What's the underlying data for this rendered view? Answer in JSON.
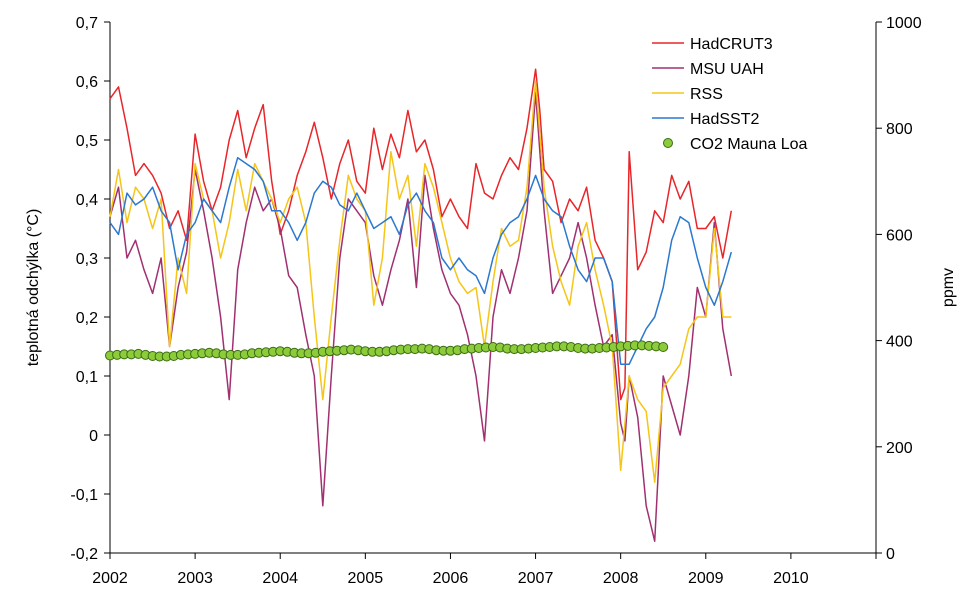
{
  "chart_data": {
    "type": "line",
    "title": "",
    "ylabel": "teplotná odchýlka (°C)",
    "y2label": "ppmv",
    "xlim": [
      2002,
      2011
    ],
    "ylim": [
      -0.2,
      0.7
    ],
    "y2lim": [
      0,
      1000
    ],
    "x_ticks": [
      2002,
      2003,
      2004,
      2005,
      2006,
      2007,
      2008,
      2009,
      2010
    ],
    "x_tick_labels": [
      "2002",
      "2003",
      "2004",
      "2005",
      "2006",
      "2007",
      "2008",
      "2009",
      "2010"
    ],
    "y_ticks": [
      -0.2,
      -0.1,
      0,
      0.1,
      0.2,
      0.3,
      0.4,
      0.5,
      0.6,
      0.7
    ],
    "y_tick_labels": [
      "-0,2",
      "-0,1",
      "0",
      "0,1",
      "0,2",
      "0,3",
      "0,4",
      "0,5",
      "0,6",
      "0,7"
    ],
    "y2_ticks": [
      0,
      200,
      400,
      600,
      800,
      1000
    ],
    "y2_tick_labels": [
      "0",
      "200",
      "400",
      "600",
      "800",
      "1000"
    ],
    "legend_position": "top-right",
    "series": [
      {
        "name": "HadCRUT3",
        "axis": "left",
        "color": "#e8262a",
        "x": [
          2002.0,
          2002.1,
          2002.2,
          2002.3,
          2002.4,
          2002.5,
          2002.6,
          2002.7,
          2002.8,
          2002.9,
          2003.0,
          2003.1,
          2003.2,
          2003.3,
          2003.4,
          2003.5,
          2003.6,
          2003.7,
          2003.8,
          2003.9,
          2004.0,
          2004.1,
          2004.2,
          2004.3,
          2004.4,
          2004.5,
          2004.6,
          2004.7,
          2004.8,
          2004.9,
          2005.0,
          2005.1,
          2005.2,
          2005.3,
          2005.4,
          2005.5,
          2005.6,
          2005.7,
          2005.8,
          2005.9,
          2006.0,
          2006.1,
          2006.2,
          2006.3,
          2006.4,
          2006.5,
          2006.6,
          2006.7,
          2006.8,
          2006.9,
          2007.0,
          2007.05,
          2007.1,
          2007.2,
          2007.3,
          2007.4,
          2007.5,
          2007.6,
          2007.7,
          2007.8,
          2007.9,
          2008.0,
          2008.05,
          2008.1,
          2008.2,
          2008.3,
          2008.4,
          2008.5,
          2008.6,
          2008.7,
          2008.8,
          2008.9,
          2009.0,
          2009.1,
          2009.2,
          2009.3
        ],
        "values": [
          0.57,
          0.59,
          0.52,
          0.44,
          0.46,
          0.44,
          0.41,
          0.35,
          0.38,
          0.33,
          0.51,
          0.43,
          0.38,
          0.42,
          0.5,
          0.55,
          0.47,
          0.52,
          0.56,
          0.43,
          0.34,
          0.38,
          0.44,
          0.48,
          0.53,
          0.47,
          0.4,
          0.46,
          0.5,
          0.43,
          0.41,
          0.52,
          0.45,
          0.51,
          0.47,
          0.55,
          0.48,
          0.5,
          0.45,
          0.37,
          0.4,
          0.37,
          0.35,
          0.46,
          0.41,
          0.4,
          0.44,
          0.47,
          0.45,
          0.52,
          0.62,
          0.55,
          0.45,
          0.43,
          0.36,
          0.4,
          0.38,
          0.42,
          0.33,
          0.3,
          0.26,
          0.06,
          0.08,
          0.48,
          0.28,
          0.31,
          0.38,
          0.36,
          0.44,
          0.4,
          0.43,
          0.35,
          0.35,
          0.37,
          0.3,
          0.38
        ]
      },
      {
        "name": "MSU UAH",
        "axis": "left",
        "color": "#a03070",
        "x": [
          2002.0,
          2002.1,
          2002.2,
          2002.3,
          2002.4,
          2002.5,
          2002.6,
          2002.7,
          2002.8,
          2002.9,
          2003.0,
          2003.1,
          2003.2,
          2003.3,
          2003.4,
          2003.5,
          2003.6,
          2003.7,
          2003.8,
          2003.9,
          2004.0,
          2004.1,
          2004.2,
          2004.3,
          2004.4,
          2004.5,
          2004.6,
          2004.7,
          2004.8,
          2004.9,
          2005.0,
          2005.1,
          2005.2,
          2005.3,
          2005.4,
          2005.5,
          2005.6,
          2005.7,
          2005.8,
          2005.9,
          2006.0,
          2006.1,
          2006.2,
          2006.3,
          2006.4,
          2006.5,
          2006.6,
          2006.7,
          2006.8,
          2006.9,
          2007.0,
          2007.1,
          2007.2,
          2007.3,
          2007.4,
          2007.5,
          2007.6,
          2007.7,
          2007.8,
          2007.9,
          2008.0,
          2008.05,
          2008.1,
          2008.2,
          2008.3,
          2008.4,
          2008.5,
          2008.6,
          2008.7,
          2008.8,
          2008.9,
          2009.0,
          2009.1,
          2009.2,
          2009.3
        ],
        "values": [
          0.37,
          0.42,
          0.3,
          0.33,
          0.28,
          0.24,
          0.3,
          0.15,
          0.25,
          0.31,
          0.45,
          0.38,
          0.3,
          0.2,
          0.06,
          0.28,
          0.36,
          0.42,
          0.38,
          0.4,
          0.35,
          0.27,
          0.25,
          0.17,
          0.1,
          -0.12,
          0.1,
          0.3,
          0.4,
          0.38,
          0.36,
          0.27,
          0.22,
          0.28,
          0.33,
          0.4,
          0.25,
          0.44,
          0.35,
          0.28,
          0.24,
          0.22,
          0.17,
          0.1,
          -0.01,
          0.2,
          0.28,
          0.24,
          0.3,
          0.38,
          0.58,
          0.38,
          0.24,
          0.27,
          0.3,
          0.36,
          0.3,
          0.22,
          0.15,
          0.17,
          0.02,
          -0.01,
          0.1,
          0.03,
          -0.12,
          -0.18,
          0.1,
          0.05,
          0.0,
          0.1,
          0.25,
          0.2,
          0.36,
          0.18,
          0.1
        ]
      },
      {
        "name": "RSS",
        "axis": "left",
        "color": "#f5c518",
        "x": [
          2002.0,
          2002.1,
          2002.2,
          2002.3,
          2002.4,
          2002.5,
          2002.6,
          2002.7,
          2002.8,
          2002.9,
          2003.0,
          2003.1,
          2003.2,
          2003.3,
          2003.4,
          2003.5,
          2003.6,
          2003.7,
          2003.8,
          2003.9,
          2004.0,
          2004.1,
          2004.2,
          2004.3,
          2004.4,
          2004.5,
          2004.6,
          2004.7,
          2004.8,
          2004.9,
          2005.0,
          2005.1,
          2005.2,
          2005.3,
          2005.4,
          2005.5,
          2005.6,
          2005.7,
          2005.8,
          2005.9,
          2006.0,
          2006.1,
          2006.2,
          2006.3,
          2006.4,
          2006.5,
          2006.6,
          2006.7,
          2006.8,
          2006.9,
          2007.0,
          2007.1,
          2007.2,
          2007.3,
          2007.4,
          2007.5,
          2007.6,
          2007.7,
          2007.8,
          2007.9,
          2008.0,
          2008.1,
          2008.2,
          2008.3,
          2008.4,
          2008.5,
          2008.6,
          2008.7,
          2008.8,
          2008.9,
          2009.0,
          2009.1,
          2009.2,
          2009.3
        ],
        "values": [
          0.37,
          0.45,
          0.36,
          0.42,
          0.4,
          0.35,
          0.4,
          0.15,
          0.3,
          0.24,
          0.46,
          0.4,
          0.38,
          0.3,
          0.36,
          0.45,
          0.38,
          0.46,
          0.43,
          0.4,
          0.36,
          0.4,
          0.42,
          0.36,
          0.2,
          0.06,
          0.2,
          0.33,
          0.44,
          0.4,
          0.38,
          0.22,
          0.3,
          0.48,
          0.4,
          0.44,
          0.32,
          0.46,
          0.42,
          0.36,
          0.3,
          0.26,
          0.24,
          0.25,
          0.15,
          0.26,
          0.35,
          0.32,
          0.33,
          0.42,
          0.6,
          0.42,
          0.32,
          0.26,
          0.22,
          0.32,
          0.36,
          0.28,
          0.22,
          0.15,
          -0.06,
          0.1,
          0.06,
          0.04,
          -0.08,
          0.08,
          0.1,
          0.12,
          0.18,
          0.2,
          0.2,
          0.35,
          0.2,
          0.2
        ]
      },
      {
        "name": "HadSST2",
        "axis": "left",
        "color": "#2a78d0",
        "x": [
          2002.0,
          2002.1,
          2002.2,
          2002.3,
          2002.4,
          2002.5,
          2002.6,
          2002.7,
          2002.8,
          2002.9,
          2003.0,
          2003.1,
          2003.2,
          2003.3,
          2003.4,
          2003.5,
          2003.6,
          2003.7,
          2003.8,
          2003.9,
          2004.0,
          2004.1,
          2004.2,
          2004.3,
          2004.4,
          2004.5,
          2004.6,
          2004.7,
          2004.8,
          2004.9,
          2005.0,
          2005.1,
          2005.2,
          2005.3,
          2005.4,
          2005.5,
          2005.6,
          2005.7,
          2005.8,
          2005.9,
          2006.0,
          2006.1,
          2006.2,
          2006.3,
          2006.4,
          2006.5,
          2006.6,
          2006.7,
          2006.8,
          2006.9,
          2007.0,
          2007.1,
          2007.2,
          2007.3,
          2007.4,
          2007.5,
          2007.6,
          2007.7,
          2007.8,
          2007.9,
          2008.0,
          2008.1,
          2008.2,
          2008.3,
          2008.4,
          2008.5,
          2008.6,
          2008.7,
          2008.8,
          2008.9,
          2009.0,
          2009.1,
          2009.2,
          2009.3
        ],
        "values": [
          0.36,
          0.34,
          0.41,
          0.39,
          0.4,
          0.42,
          0.38,
          0.36,
          0.28,
          0.34,
          0.36,
          0.4,
          0.38,
          0.36,
          0.42,
          0.47,
          0.46,
          0.45,
          0.43,
          0.38,
          0.38,
          0.36,
          0.33,
          0.36,
          0.41,
          0.43,
          0.42,
          0.39,
          0.38,
          0.41,
          0.38,
          0.35,
          0.36,
          0.37,
          0.34,
          0.39,
          0.41,
          0.38,
          0.36,
          0.3,
          0.28,
          0.3,
          0.28,
          0.27,
          0.24,
          0.3,
          0.34,
          0.36,
          0.37,
          0.4,
          0.44,
          0.4,
          0.38,
          0.37,
          0.32,
          0.28,
          0.26,
          0.3,
          0.3,
          0.26,
          0.12,
          0.12,
          0.15,
          0.18,
          0.2,
          0.25,
          0.33,
          0.37,
          0.36,
          0.3,
          0.25,
          0.22,
          0.26,
          0.31
        ]
      },
      {
        "name": "CO2 Mauna Loa",
        "axis": "right",
        "color": "#8ccc3a",
        "marker": "circle",
        "x_start": 2002.0,
        "x_step": 0.0833333,
        "values": [
          372,
          373,
          374,
          374,
          375,
          373,
          371,
          370,
          370,
          371,
          373,
          374,
          375,
          376,
          377,
          376,
          374,
          373,
          373,
          374,
          376,
          377,
          378,
          379,
          380,
          379,
          377,
          376,
          376,
          377,
          379,
          380,
          381,
          382,
          383,
          382,
          380,
          379,
          379,
          380,
          382,
          383,
          384,
          384,
          385,
          384,
          382,
          381,
          381,
          382,
          384,
          385,
          386,
          387,
          388,
          387,
          385,
          384,
          384,
          385,
          386,
          387,
          388,
          389,
          389,
          388,
          386,
          385,
          385,
          386,
          387,
          388,
          389,
          390,
          391,
          391,
          390,
          389,
          388
        ]
      }
    ]
  }
}
